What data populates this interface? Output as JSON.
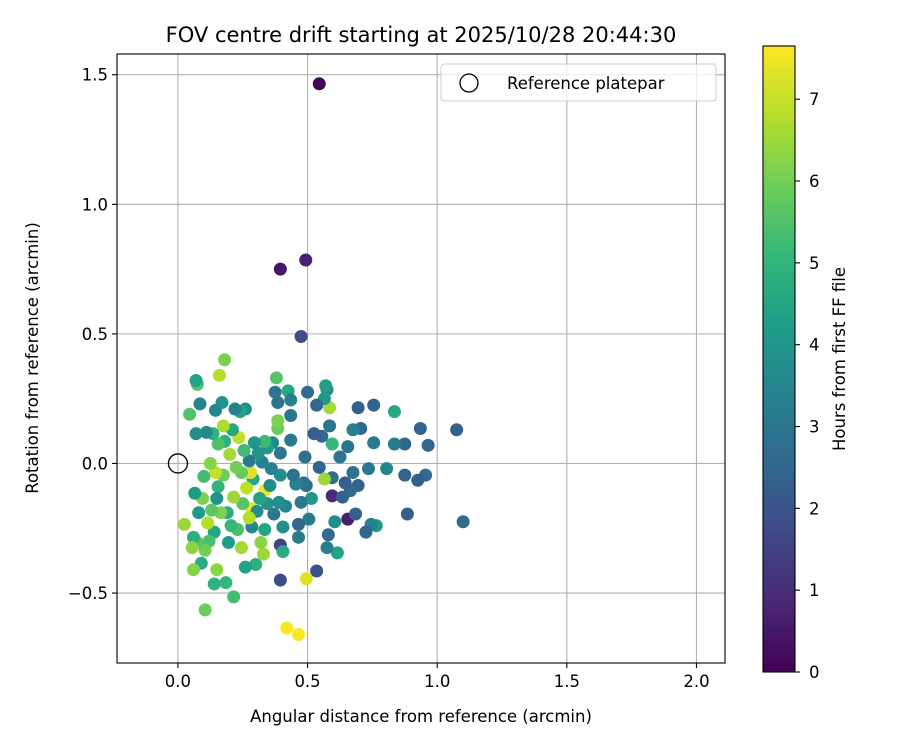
{
  "chart_data": {
    "type": "scatter",
    "title": "FOV centre drift starting at 2025/10/28 20:44:30",
    "xlabel": "Angular distance from reference (arcmin)",
    "ylabel": "Rotation from reference (arcmin)",
    "xlim": [
      -0.235,
      2.11
    ],
    "ylim": [
      -0.77,
      1.58
    ],
    "xticks": [
      0.0,
      0.5,
      1.0,
      1.5,
      2.0
    ],
    "xtick_labels": [
      "0.0",
      "0.5",
      "1.0",
      "1.5",
      "2.0"
    ],
    "yticks": [
      -0.5,
      0.0,
      0.5,
      1.0,
      1.5
    ],
    "ytick_labels": [
      "−0.5",
      "0.0",
      "0.5",
      "1.0",
      "1.5"
    ],
    "grid": true,
    "legend": {
      "location": "top-right",
      "entries": [
        {
          "label": "Reference platepar",
          "marker": "open-circle"
        }
      ]
    },
    "reference_point": {
      "x": 0.0,
      "y": 0.0
    },
    "colorbar": {
      "label": "Hours from first FF file",
      "colormap": "viridis",
      "range": [
        0,
        7.65
      ],
      "ticks": [
        0,
        1,
        2,
        3,
        4,
        5,
        6,
        7
      ],
      "tick_labels": [
        "0",
        "1",
        "2",
        "3",
        "4",
        "5",
        "6",
        "7"
      ],
      "colors": [
        "#440154",
        "#482878",
        "#3e4989",
        "#31688e",
        "#26828e",
        "#1f9e89",
        "#35b779",
        "#6ece58",
        "#b5de2b",
        "#fde725"
      ]
    },
    "points": [
      {
        "x": 0.545,
        "y": 1.465,
        "c": 0.1
      },
      {
        "x": 0.493,
        "y": 0.785,
        "c": 0.7
      },
      {
        "x": 0.395,
        "y": 0.75,
        "c": 0.5
      },
      {
        "x": 0.475,
        "y": 0.49,
        "c": 1.8
      },
      {
        "x": 0.655,
        "y": -0.215,
        "c": 0.6
      },
      {
        "x": 0.595,
        "y": -0.125,
        "c": 0.9
      },
      {
        "x": 0.395,
        "y": -0.45,
        "c": 1.8
      },
      {
        "x": 0.535,
        "y": -0.415,
        "c": 2.0
      },
      {
        "x": 0.395,
        "y": -0.315,
        "c": 1.5
      },
      {
        "x": 0.42,
        "y": -0.635,
        "c": 7.6
      },
      {
        "x": 0.465,
        "y": -0.66,
        "c": 7.6
      },
      {
        "x": 0.495,
        "y": -0.445,
        "c": 7.3
      },
      {
        "x": 0.335,
        "y": -0.105,
        "c": 7.5
      },
      {
        "x": 0.285,
        "y": -0.175,
        "c": 7.4
      },
      {
        "x": 1.1,
        "y": -0.225,
        "c": 2.6
      },
      {
        "x": 1.075,
        "y": 0.13,
        "c": 2.4
      },
      {
        "x": 0.965,
        "y": 0.07,
        "c": 2.5
      },
      {
        "x": 0.935,
        "y": 0.135,
        "c": 2.4
      },
      {
        "x": 0.955,
        "y": -0.045,
        "c": 2.6
      },
      {
        "x": 0.925,
        "y": -0.065,
        "c": 2.3
      },
      {
        "x": 0.885,
        "y": -0.195,
        "c": 2.3
      },
      {
        "x": 0.875,
        "y": -0.045,
        "c": 2.4
      },
      {
        "x": 0.875,
        "y": 0.075,
        "c": 2.5
      },
      {
        "x": 0.835,
        "y": 0.075,
        "c": 3.2
      },
      {
        "x": 0.835,
        "y": 0.2,
        "c": 4.6
      },
      {
        "x": 0.805,
        "y": -0.02,
        "c": 3.5
      },
      {
        "x": 0.765,
        "y": -0.24,
        "c": 4.2
      },
      {
        "x": 0.755,
        "y": 0.225,
        "c": 2.4
      },
      {
        "x": 0.755,
        "y": 0.08,
        "c": 3.1
      },
      {
        "x": 0.745,
        "y": -0.235,
        "c": 3.4
      },
      {
        "x": 0.735,
        "y": -0.02,
        "c": 3.0
      },
      {
        "x": 0.725,
        "y": -0.265,
        "c": 2.5
      },
      {
        "x": 0.705,
        "y": 0.135,
        "c": 2.6
      },
      {
        "x": 0.695,
        "y": 0.215,
        "c": 2.3
      },
      {
        "x": 0.695,
        "y": -0.085,
        "c": 2.4
      },
      {
        "x": 0.685,
        "y": -0.195,
        "c": 2.3
      },
      {
        "x": 0.675,
        "y": 0.13,
        "c": 3.3
      },
      {
        "x": 0.675,
        "y": -0.035,
        "c": 2.9
      },
      {
        "x": 0.665,
        "y": -0.105,
        "c": 2.6
      },
      {
        "x": 0.655,
        "y": 0.065,
        "c": 2.9
      },
      {
        "x": 0.645,
        "y": -0.075,
        "c": 2.3
      },
      {
        "x": 0.635,
        "y": -0.13,
        "c": 2.4
      },
      {
        "x": 0.625,
        "y": 0.025,
        "c": 3.0
      },
      {
        "x": 0.615,
        "y": -0.345,
        "c": 4.4
      },
      {
        "x": 0.605,
        "y": -0.225,
        "c": 3.8
      },
      {
        "x": 0.595,
        "y": -0.055,
        "c": 2.8
      },
      {
        "x": 0.595,
        "y": 0.075,
        "c": 5.1
      },
      {
        "x": 0.585,
        "y": 0.145,
        "c": 2.9
      },
      {
        "x": 0.585,
        "y": 0.215,
        "c": 6.6
      },
      {
        "x": 0.58,
        "y": -0.275,
        "c": 2.6
      },
      {
        "x": 0.575,
        "y": -0.325,
        "c": 3.3
      },
      {
        "x": 0.575,
        "y": 0.285,
        "c": 3.6
      },
      {
        "x": 0.57,
        "y": 0.3,
        "c": 4.3
      },
      {
        "x": 0.565,
        "y": 0.25,
        "c": 4.1
      },
      {
        "x": 0.565,
        "y": -0.06,
        "c": 6.5
      },
      {
        "x": 0.555,
        "y": 0.105,
        "c": 2.6
      },
      {
        "x": 0.545,
        "y": -0.015,
        "c": 2.5
      },
      {
        "x": 0.535,
        "y": 0.225,
        "c": 2.5
      },
      {
        "x": 0.525,
        "y": 0.115,
        "c": 2.3
      },
      {
        "x": 0.515,
        "y": -0.135,
        "c": 4.1
      },
      {
        "x": 0.505,
        "y": -0.215,
        "c": 3.2
      },
      {
        "x": 0.5,
        "y": 0.275,
        "c": 2.6
      },
      {
        "x": 0.495,
        "y": -0.085,
        "c": 2.6
      },
      {
        "x": 0.49,
        "y": 0.025,
        "c": 2.8
      },
      {
        "x": 0.485,
        "y": -0.075,
        "c": 2.9
      },
      {
        "x": 0.475,
        "y": -0.15,
        "c": 3.1
      },
      {
        "x": 0.465,
        "y": -0.285,
        "c": 3.2
      },
      {
        "x": 0.465,
        "y": -0.235,
        "c": 2.5
      },
      {
        "x": 0.455,
        "y": -0.08,
        "c": 3.4
      },
      {
        "x": 0.445,
        "y": -0.045,
        "c": 2.9
      },
      {
        "x": 0.435,
        "y": 0.09,
        "c": 3.1
      },
      {
        "x": 0.435,
        "y": 0.185,
        "c": 3.0
      },
      {
        "x": 0.425,
        "y": 0.28,
        "c": 4.6
      },
      {
        "x": 0.435,
        "y": 0.245,
        "c": 3.3
      },
      {
        "x": 0.415,
        "y": -0.165,
        "c": 3.5
      },
      {
        "x": 0.405,
        "y": -0.245,
        "c": 3.8
      },
      {
        "x": 0.405,
        "y": -0.34,
        "c": 4.7
      },
      {
        "x": 0.395,
        "y": 0.04,
        "c": 3.0
      },
      {
        "x": 0.395,
        "y": -0.045,
        "c": 3.8
      },
      {
        "x": 0.39,
        "y": -0.15,
        "c": 3.7
      },
      {
        "x": 0.385,
        "y": 0.135,
        "c": 5.9
      },
      {
        "x": 0.385,
        "y": 0.165,
        "c": 6.1
      },
      {
        "x": 0.385,
        "y": 0.235,
        "c": 2.8
      },
      {
        "x": 0.38,
        "y": 0.33,
        "c": 5.6
      },
      {
        "x": 0.375,
        "y": 0.275,
        "c": 3.0
      },
      {
        "x": 0.37,
        "y": -0.195,
        "c": 3.1
      },
      {
        "x": 0.365,
        "y": 0.08,
        "c": 3.6
      },
      {
        "x": 0.36,
        "y": -0.02,
        "c": 3.4
      },
      {
        "x": 0.355,
        "y": -0.085,
        "c": 3.7
      },
      {
        "x": 0.345,
        "y": -0.155,
        "c": 3.9
      },
      {
        "x": 0.345,
        "y": 0.06,
        "c": 4.2
      },
      {
        "x": 0.335,
        "y": -0.255,
        "c": 4.5
      },
      {
        "x": 0.335,
        "y": 0.085,
        "c": 5.2
      },
      {
        "x": 0.33,
        "y": -0.35,
        "c": 6.5
      },
      {
        "x": 0.325,
        "y": 0.005,
        "c": 3.4
      },
      {
        "x": 0.32,
        "y": -0.305,
        "c": 6.3
      },
      {
        "x": 0.315,
        "y": -0.135,
        "c": 4.4
      },
      {
        "x": 0.31,
        "y": 0.04,
        "c": 3.9
      },
      {
        "x": 0.305,
        "y": -0.185,
        "c": 3.8
      },
      {
        "x": 0.3,
        "y": -0.39,
        "c": 4.8
      },
      {
        "x": 0.295,
        "y": 0.08,
        "c": 4.0
      },
      {
        "x": 0.29,
        "y": -0.06,
        "c": 4.6
      },
      {
        "x": 0.285,
        "y": -0.245,
        "c": 3.5
      },
      {
        "x": 0.28,
        "y": -0.035,
        "c": 7.3
      },
      {
        "x": 0.275,
        "y": -0.21,
        "c": 6.8
      },
      {
        "x": 0.275,
        "y": 0.01,
        "c": 3.2
      },
      {
        "x": 0.265,
        "y": -0.095,
        "c": 6.9
      },
      {
        "x": 0.26,
        "y": 0.21,
        "c": 3.7
      },
      {
        "x": 0.26,
        "y": -0.4,
        "c": 4.4
      },
      {
        "x": 0.255,
        "y": 0.05,
        "c": 5.3
      },
      {
        "x": 0.25,
        "y": -0.155,
        "c": 5.6
      },
      {
        "x": 0.245,
        "y": -0.325,
        "c": 6.6
      },
      {
        "x": 0.245,
        "y": -0.035,
        "c": 5.8
      },
      {
        "x": 0.24,
        "y": 0.2,
        "c": 4.4
      },
      {
        "x": 0.235,
        "y": 0.1,
        "c": 6.9
      },
      {
        "x": 0.23,
        "y": -0.255,
        "c": 5.4
      },
      {
        "x": 0.225,
        "y": -0.015,
        "c": 6.0
      },
      {
        "x": 0.22,
        "y": 0.21,
        "c": 3.4
      },
      {
        "x": 0.215,
        "y": -0.13,
        "c": 6.5
      },
      {
        "x": 0.215,
        "y": -0.515,
        "c": 5.3
      },
      {
        "x": 0.21,
        "y": 0.13,
        "c": 4.6
      },
      {
        "x": 0.205,
        "y": -0.24,
        "c": 5.1
      },
      {
        "x": 0.2,
        "y": 0.035,
        "c": 6.6
      },
      {
        "x": 0.195,
        "y": -0.305,
        "c": 4.3
      },
      {
        "x": 0.19,
        "y": -0.19,
        "c": 4.7
      },
      {
        "x": 0.185,
        "y": -0.46,
        "c": 5.1
      },
      {
        "x": 0.18,
        "y": 0.4,
        "c": 6.1
      },
      {
        "x": 0.18,
        "y": 0.085,
        "c": 4.8
      },
      {
        "x": 0.175,
        "y": 0.145,
        "c": 6.7
      },
      {
        "x": 0.175,
        "y": -0.045,
        "c": 5.9
      },
      {
        "x": 0.17,
        "y": 0.235,
        "c": 4.0
      },
      {
        "x": 0.165,
        "y": -0.19,
        "c": 6.1
      },
      {
        "x": 0.16,
        "y": 0.34,
        "c": 6.8
      },
      {
        "x": 0.155,
        "y": -0.09,
        "c": 5.0
      },
      {
        "x": 0.155,
        "y": 0.075,
        "c": 5.5
      },
      {
        "x": 0.15,
        "y": -0.135,
        "c": 3.9
      },
      {
        "x": 0.15,
        "y": -0.41,
        "c": 6.3
      },
      {
        "x": 0.145,
        "y": -0.035,
        "c": 7.0
      },
      {
        "x": 0.145,
        "y": 0.205,
        "c": 3.5
      },
      {
        "x": 0.14,
        "y": -0.265,
        "c": 4.5
      },
      {
        "x": 0.14,
        "y": -0.465,
        "c": 4.9
      },
      {
        "x": 0.135,
        "y": 0.115,
        "c": 4.9
      },
      {
        "x": 0.13,
        "y": -0.18,
        "c": 5.7
      },
      {
        "x": 0.125,
        "y": 0.0,
        "c": 6.2
      },
      {
        "x": 0.12,
        "y": -0.3,
        "c": 5.4
      },
      {
        "x": 0.115,
        "y": -0.23,
        "c": 6.8
      },
      {
        "x": 0.11,
        "y": 0.12,
        "c": 3.6
      },
      {
        "x": 0.105,
        "y": -0.335,
        "c": 6.0
      },
      {
        "x": 0.105,
        "y": -0.565,
        "c": 5.9
      },
      {
        "x": 0.1,
        "y": -0.05,
        "c": 5.3
      },
      {
        "x": 0.095,
        "y": -0.135,
        "c": 6.1
      },
      {
        "x": 0.09,
        "y": -0.385,
        "c": 4.7
      },
      {
        "x": 0.085,
        "y": 0.23,
        "c": 3.4
      },
      {
        "x": 0.08,
        "y": -0.19,
        "c": 4.1
      },
      {
        "x": 0.075,
        "y": 0.305,
        "c": 5.5
      },
      {
        "x": 0.075,
        "y": -0.305,
        "c": 5.6
      },
      {
        "x": 0.07,
        "y": 0.32,
        "c": 4.4
      },
      {
        "x": 0.07,
        "y": 0.115,
        "c": 3.8
      },
      {
        "x": 0.065,
        "y": -0.115,
        "c": 4.2
      },
      {
        "x": 0.06,
        "y": -0.285,
        "c": 4.8
      },
      {
        "x": 0.055,
        "y": -0.325,
        "c": 6.3
      },
      {
        "x": 0.06,
        "y": -0.41,
        "c": 6.2
      },
      {
        "x": 0.045,
        "y": 0.19,
        "c": 5.5
      },
      {
        "x": 0.025,
        "y": -0.235,
        "c": 6.5
      }
    ]
  }
}
